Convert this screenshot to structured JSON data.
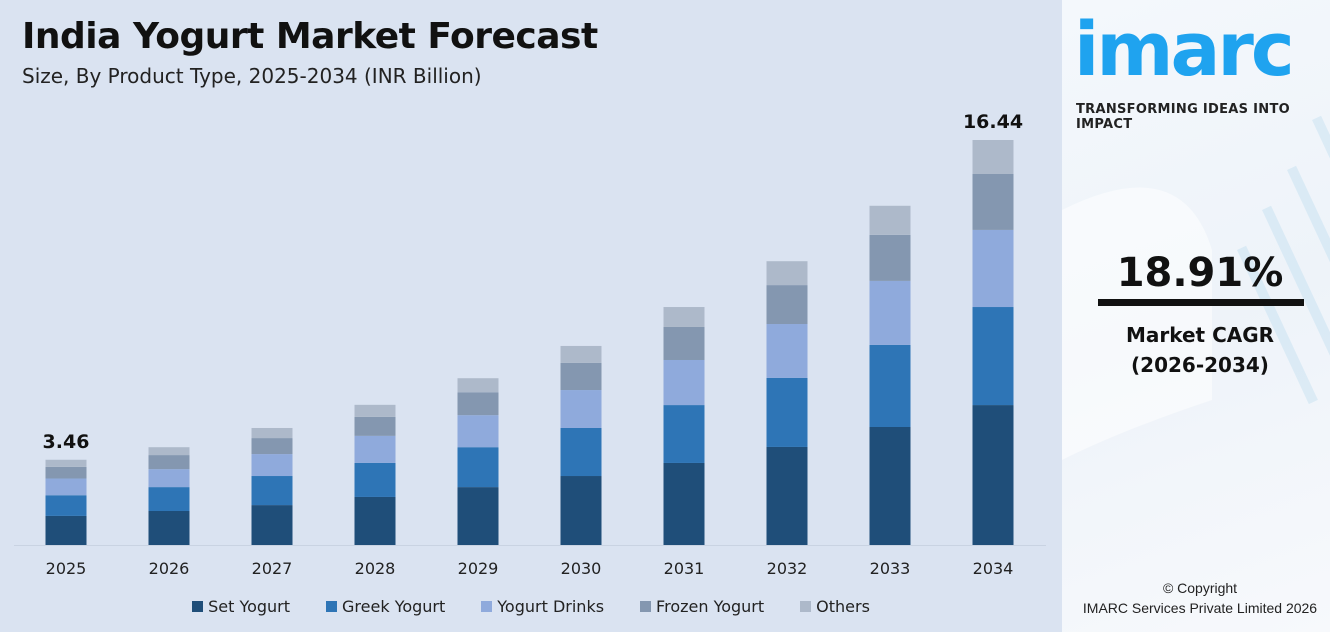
{
  "header": {
    "title": "India Yogurt Market Forecast",
    "subtitle": "Size, By Product Type, 2025-2034 (INR Billion)"
  },
  "chart_data": {
    "type": "bar",
    "stacked": true,
    "title": "India Yogurt Market Forecast",
    "subtitle": "Size, By Product Type, 2025-2034 (INR Billion)",
    "categories": [
      "2025",
      "2026",
      "2027",
      "2028",
      "2029",
      "2030",
      "2031",
      "2032",
      "2033",
      "2034"
    ],
    "series": [
      {
        "name": "Set Yogurt",
        "color": "#1f4e79",
        "values": [
          1.18,
          1.38,
          1.62,
          1.95,
          2.35,
          2.8,
          3.33,
          3.98,
          4.79,
          5.68
        ]
      },
      {
        "name": "Greek Yogurt",
        "color": "#2e75b6",
        "values": [
          0.84,
          0.97,
          1.18,
          1.38,
          1.62,
          1.95,
          2.35,
          2.8,
          3.33,
          3.98
        ]
      },
      {
        "name": "Yogurt Drinks",
        "color": "#8faadc",
        "values": [
          0.68,
          0.73,
          0.89,
          1.1,
          1.3,
          1.54,
          1.83,
          2.19,
          2.6,
          3.13
        ]
      },
      {
        "name": "Frozen Yogurt",
        "color": "#8497b0",
        "values": [
          0.47,
          0.57,
          0.65,
          0.77,
          0.93,
          1.1,
          1.34,
          1.58,
          1.87,
          2.27
        ]
      },
      {
        "name": "Others",
        "color": "#adb9ca",
        "values": [
          0.29,
          0.32,
          0.41,
          0.49,
          0.57,
          0.69,
          0.81,
          0.97,
          1.18,
          1.38
        ]
      }
    ],
    "data_labels": [
      {
        "category": "2025",
        "text": "3.46"
      },
      {
        "category": "2034",
        "text": "16.44"
      }
    ],
    "ylim": [
      0,
      16.44
    ],
    "grid": false,
    "yaxis_visible": false,
    "legend_position": "bottom"
  },
  "sidebar": {
    "logo_text": "imarc",
    "tagline": "TRANSFORMING IDEAS INTO IMPACT",
    "cagr_value": "18.91%",
    "cagr_label": "Market CAGR",
    "cagr_period": "(2026-2034)",
    "copyright": "© Copyright",
    "company": "IMARC Services Private Limited 2026",
    "brand_color": "#1fa3ef"
  }
}
